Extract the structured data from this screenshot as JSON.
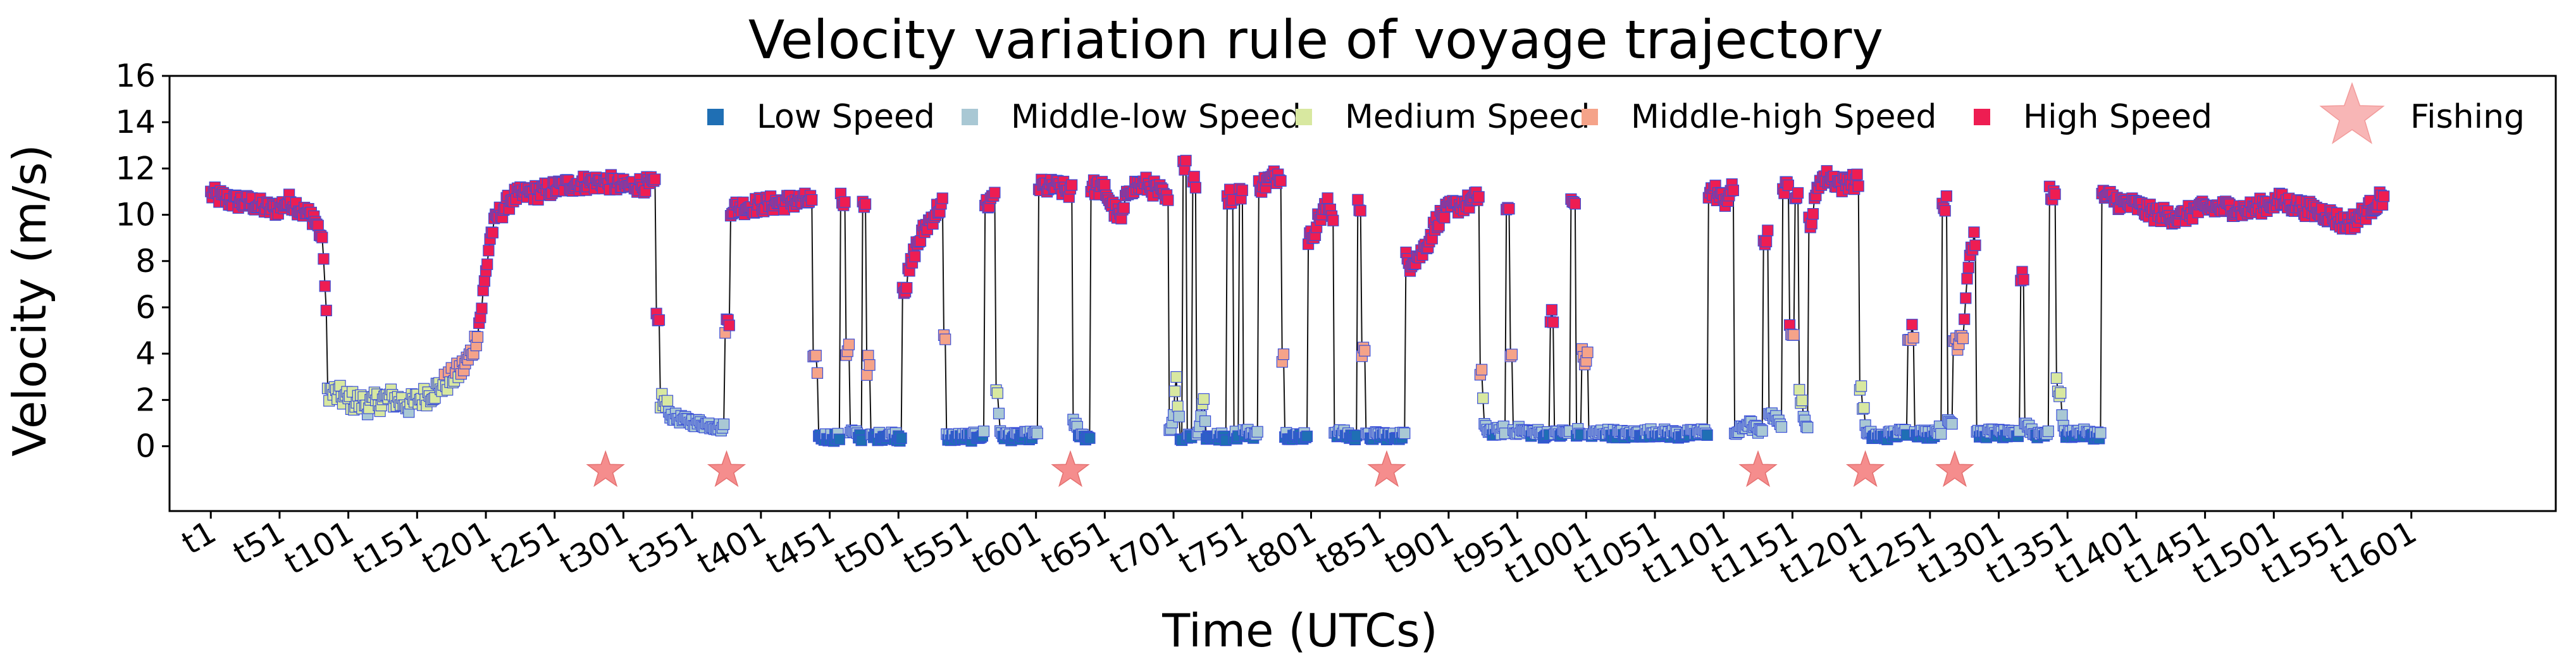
{
  "chart_data": {
    "type": "scatter",
    "title": "Velocity variation rule of voyage trajectory",
    "xlabel": "Time (UTCs)",
    "ylabel": "Velocity  (m/s)",
    "xlim": [
      -30,
      1705
    ],
    "ylim": [
      -2.8,
      16
    ],
    "yticks": [
      0,
      2,
      4,
      6,
      8,
      10,
      12,
      14,
      16
    ],
    "xticks": [
      {
        "label": "t1",
        "x": 0
      },
      {
        "label": "t51",
        "x": 50
      },
      {
        "label": "t101",
        "x": 100
      },
      {
        "label": "t151",
        "x": 150
      },
      {
        "label": "t201",
        "x": 200
      },
      {
        "label": "t251",
        "x": 250
      },
      {
        "label": "t301",
        "x": 300
      },
      {
        "label": "t351",
        "x": 350
      },
      {
        "label": "t401",
        "x": 400
      },
      {
        "label": "t451",
        "x": 450
      },
      {
        "label": "t501",
        "x": 500
      },
      {
        "label": "t551",
        "x": 550
      },
      {
        "label": "t601",
        "x": 600
      },
      {
        "label": "t651",
        "x": 650
      },
      {
        "label": "t701",
        "x": 700
      },
      {
        "label": "t751",
        "x": 750
      },
      {
        "label": "t801",
        "x": 800
      },
      {
        "label": "t851",
        "x": 850
      },
      {
        "label": "t901",
        "x": 900
      },
      {
        "label": "t951",
        "x": 950
      },
      {
        "label": "t1001",
        "x": 1000
      },
      {
        "label": "t1051",
        "x": 1050
      },
      {
        "label": "t1101",
        "x": 1100
      },
      {
        "label": "t1151",
        "x": 1150
      },
      {
        "label": "t1201",
        "x": 1200
      },
      {
        "label": "t1251",
        "x": 1250
      },
      {
        "label": "t1301",
        "x": 1300
      },
      {
        "label": "t1351",
        "x": 1350
      },
      {
        "label": "t1401",
        "x": 1400
      },
      {
        "label": "t1451",
        "x": 1450
      },
      {
        "label": "t1501",
        "x": 1500
      },
      {
        "label": "t1551",
        "x": 1550
      },
      {
        "label": "t1601",
        "x": 1600
      }
    ],
    "legend": {
      "position": "top-right",
      "entries": [
        {
          "name": "Low Speed",
          "color": "#1f6fb4",
          "marker": "square"
        },
        {
          "name": "Middle-low Speed",
          "color": "#a9c8d4",
          "marker": "square"
        },
        {
          "name": "Medium Speed",
          "color": "#d8e8a0",
          "marker": "square"
        },
        {
          "name": "Middle-high Speed",
          "color": "#f5a389",
          "marker": "square"
        },
        {
          "name": "High Speed",
          "color": "#ee1d52",
          "marker": "square"
        },
        {
          "name": "Fishing",
          "color": "#f47a7a",
          "marker": "star"
        }
      ]
    },
    "speed_classes": [
      {
        "name": "Low Speed",
        "range": [
          0,
          0.5
        ]
      },
      {
        "name": "Middle-low Speed",
        "range": [
          0.5,
          1.5
        ]
      },
      {
        "name": "Medium Speed",
        "range": [
          1.5,
          3.0
        ]
      },
      {
        "name": "Middle-high Speed",
        "range": [
          3.0,
          5.0
        ]
      },
      {
        "name": "High Speed",
        "range": [
          5.0,
          16
        ]
      }
    ],
    "trajectory_segments": [
      [
        0,
        10.9
      ],
      [
        15,
        10.6
      ],
      [
        30,
        10.5
      ],
      [
        45,
        10.2
      ],
      [
        58,
        10.6
      ],
      [
        68,
        10.1
      ],
      [
        75,
        9.9
      ],
      [
        80,
        9.1
      ],
      [
        82,
        8.3
      ],
      [
        84,
        5.5
      ],
      [
        86,
        2.4
      ],
      [
        100,
        2.0
      ],
      [
        115,
        1.8
      ],
      [
        130,
        2.1
      ],
      [
        145,
        1.8
      ],
      [
        160,
        2.3
      ],
      [
        172,
        2.8
      ],
      [
        182,
        3.3
      ],
      [
        188,
        3.8
      ],
      [
        192,
        4.5
      ],
      [
        196,
        5.6
      ],
      [
        200,
        7.5
      ],
      [
        203,
        9.0
      ],
      [
        208,
        9.9
      ],
      [
        220,
        10.8
      ],
      [
        240,
        11.0
      ],
      [
        260,
        11.3
      ],
      [
        275,
        11.4
      ],
      [
        290,
        11.4
      ],
      [
        300,
        11.2
      ],
      [
        310,
        11.3
      ],
      [
        322,
        11.3
      ],
      [
        325,
        5.3
      ],
      [
        328,
        2.0
      ],
      [
        335,
        1.3
      ],
      [
        345,
        1.1
      ],
      [
        355,
        1.0
      ],
      [
        365,
        0.9
      ],
      [
        372,
        0.8
      ],
      [
        376,
        5.3
      ],
      [
        380,
        10.3
      ],
      [
        395,
        10.4
      ],
      [
        410,
        10.5
      ],
      [
        425,
        10.6
      ],
      [
        435,
        10.6
      ],
      [
        440,
        3.5
      ],
      [
        443,
        0.4
      ],
      [
        455,
        0.4
      ],
      [
        460,
        10.6
      ],
      [
        464,
        4.2
      ],
      [
        466,
        0.6
      ],
      [
        472,
        0.4
      ],
      [
        475,
        10.5
      ],
      [
        478,
        3.5
      ],
      [
        482,
        0.4
      ],
      [
        496,
        0.5
      ],
      [
        500,
        0.4
      ],
      [
        506,
        7.0
      ],
      [
        512,
        8.5
      ],
      [
        520,
        9.5
      ],
      [
        528,
        10.2
      ],
      [
        532,
        10.5
      ],
      [
        534,
        4.5
      ],
      [
        536,
        0.4
      ],
      [
        546,
        0.4
      ],
      [
        554,
        0.4
      ],
      [
        560,
        0.5
      ],
      [
        566,
        10.5
      ],
      [
        570,
        11.0
      ],
      [
        572,
        2.5
      ],
      [
        574,
        0.5
      ],
      [
        585,
        0.4
      ],
      [
        600,
        0.5
      ],
      [
        604,
        11.2
      ],
      [
        615,
        11.2
      ],
      [
        625,
        11.0
      ],
      [
        628,
        1.0
      ],
      [
        632,
        0.5
      ],
      [
        638,
        0.4
      ],
      [
        642,
        11.2
      ],
      [
        650,
        11.1
      ],
      [
        656,
        10.3
      ],
      [
        662,
        9.8
      ],
      [
        668,
        11.2
      ],
      [
        680,
        11.3
      ],
      [
        690,
        11.0
      ],
      [
        696,
        10.5
      ],
      [
        698,
        0.6
      ],
      [
        702,
        3.0
      ],
      [
        705,
        0.4
      ],
      [
        708,
        12.1
      ],
      [
        712,
        0.5
      ],
      [
        716,
        11.5
      ],
      [
        718,
        0.6
      ],
      [
        722,
        2.0
      ],
      [
        724,
        0.4
      ],
      [
        736,
        0.4
      ],
      [
        742,
        10.8
      ],
      [
        746,
        0.5
      ],
      [
        750,
        11.0
      ],
      [
        752,
        0.6
      ],
      [
        760,
        0.5
      ],
      [
        764,
        11.3
      ],
      [
        770,
        11.5
      ],
      [
        778,
        11.8
      ],
      [
        780,
        4.0
      ],
      [
        782,
        0.5
      ],
      [
        790,
        0.4
      ],
      [
        796,
        0.5
      ],
      [
        800,
        9.0
      ],
      [
        806,
        9.9
      ],
      [
        812,
        10.4
      ],
      [
        816,
        10.0
      ],
      [
        818,
        0.6
      ],
      [
        825,
        0.5
      ],
      [
        832,
        0.4
      ],
      [
        836,
        10.4
      ],
      [
        838,
        4.3
      ],
      [
        842,
        0.4
      ],
      [
        852,
        0.5
      ],
      [
        860,
        0.4
      ],
      [
        866,
        0.5
      ],
      [
        872,
        8.0
      ],
      [
        880,
        8.3
      ],
      [
        886,
        9.0
      ],
      [
        892,
        9.8
      ],
      [
        902,
        10.3
      ],
      [
        912,
        10.5
      ],
      [
        918,
        10.6
      ],
      [
        922,
        10.8
      ],
      [
        924,
        3.2
      ],
      [
        926,
        0.8
      ],
      [
        934,
        0.6
      ],
      [
        940,
        0.7
      ],
      [
        944,
        10.2
      ],
      [
        946,
        4.0
      ],
      [
        948,
        0.7
      ],
      [
        960,
        0.6
      ],
      [
        972,
        0.5
      ],
      [
        976,
        5.8
      ],
      [
        978,
        0.5
      ],
      [
        986,
        0.6
      ],
      [
        992,
        10.5
      ],
      [
        994,
        0.6
      ],
      [
        1000,
        3.8
      ],
      [
        1004,
        0.5
      ],
      [
        1012,
        0.6
      ],
      [
        1030,
        0.5
      ],
      [
        1050,
        0.6
      ],
      [
        1070,
        0.5
      ],
      [
        1084,
        0.6
      ],
      [
        1094,
        11.0
      ],
      [
        1100,
        10.6
      ],
      [
        1106,
        11.0
      ],
      [
        1110,
        0.6
      ],
      [
        1118,
        1.0
      ],
      [
        1126,
        0.6
      ],
      [
        1132,
        9.0
      ],
      [
        1134,
        1.5
      ],
      [
        1140,
        1.0
      ],
      [
        1146,
        11.1
      ],
      [
        1150,
        5.2
      ],
      [
        1154,
        11.0
      ],
      [
        1156,
        2.2
      ],
      [
        1160,
        0.7
      ],
      [
        1164,
        9.8
      ],
      [
        1170,
        11.6
      ],
      [
        1178,
        11.6
      ],
      [
        1186,
        11.3
      ],
      [
        1192,
        11.5
      ],
      [
        1198,
        11.4
      ],
      [
        1200,
        2.5
      ],
      [
        1204,
        0.5
      ],
      [
        1214,
        0.4
      ],
      [
        1222,
        0.5
      ],
      [
        1230,
        0.6
      ],
      [
        1238,
        5.0
      ],
      [
        1240,
        0.6
      ],
      [
        1250,
        0.5
      ],
      [
        1256,
        0.7
      ],
      [
        1262,
        10.5
      ],
      [
        1264,
        1.0
      ],
      [
        1270,
        4.6
      ],
      [
        1274,
        5.0
      ],
      [
        1278,
        8.0
      ],
      [
        1282,
        9.0
      ],
      [
        1286,
        0.5
      ],
      [
        1296,
        0.6
      ],
      [
        1306,
        0.5
      ],
      [
        1314,
        0.5
      ],
      [
        1318,
        7.5
      ],
      [
        1320,
        1.0
      ],
      [
        1326,
        0.5
      ],
      [
        1334,
        0.6
      ],
      [
        1340,
        10.9
      ],
      [
        1344,
        2.5
      ],
      [
        1348,
        0.5
      ],
      [
        1358,
        0.6
      ],
      [
        1366,
        0.5
      ],
      [
        1372,
        0.5
      ],
      [
        1378,
        10.8
      ],
      [
        1390,
        10.5
      ],
      [
        1400,
        10.4
      ],
      [
        1410,
        10.1
      ],
      [
        1420,
        10.0
      ],
      [
        1432,
        9.9
      ],
      [
        1444,
        10.2
      ],
      [
        1456,
        10.3
      ],
      [
        1468,
        10.3
      ],
      [
        1480,
        10.2
      ],
      [
        1492,
        10.4
      ],
      [
        1504,
        10.6
      ],
      [
        1516,
        10.4
      ],
      [
        1528,
        10.2
      ],
      [
        1540,
        10.0
      ],
      [
        1552,
        9.6
      ],
      [
        1560,
        9.8
      ],
      [
        1568,
        10.2
      ],
      [
        1580,
        10.8
      ]
    ],
    "fishing_events_x": [
      287,
      375,
      625,
      855,
      1125,
      1203,
      1268
    ]
  }
}
